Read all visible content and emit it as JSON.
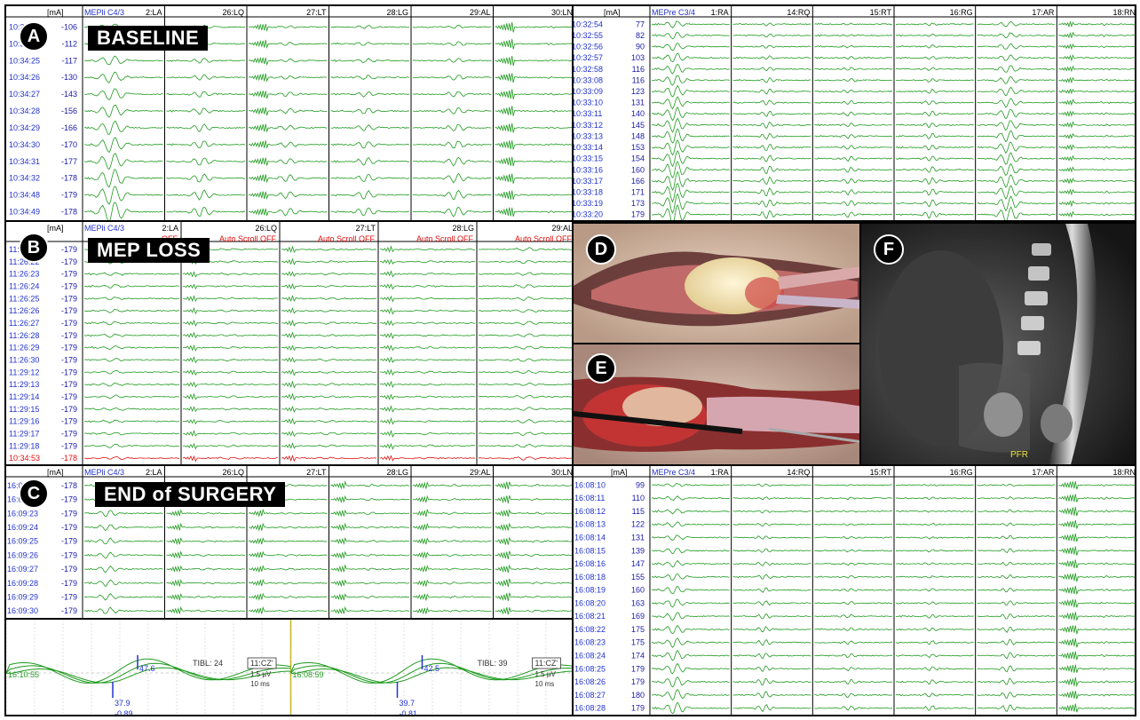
{
  "panels": {
    "A": {
      "letter": "A",
      "title": "BASELINE"
    },
    "B": {
      "letter": "B",
      "title": "MEP LOSS"
    },
    "C": {
      "letter": "C",
      "title": "END of SURGERY"
    },
    "D": {
      "letter": "D"
    },
    "E": {
      "letter": "E"
    },
    "F": {
      "letter": "F",
      "mri_label": "PFR"
    }
  },
  "unit": "[mA]",
  "A_left": {
    "channels": [
      "MEPli C4/3",
      "2:LA",
      "26:LQ",
      "27:LT",
      "28:LG",
      "29:AL",
      "30:LN"
    ],
    "rows": [
      [
        "10:34:23",
        "-106"
      ],
      [
        "10:34:24",
        "-112"
      ],
      [
        "10:34:25",
        "-117"
      ],
      [
        "10:34:26",
        "-130"
      ],
      [
        "10:34:27",
        "-143"
      ],
      [
        "10:34:28",
        "-156"
      ],
      [
        "10:34:29",
        "-166"
      ],
      [
        "10:34:30",
        "-170"
      ],
      [
        "10:34:31",
        "-177"
      ],
      [
        "10:34:32",
        "-178"
      ],
      [
        "10:34:48",
        "-179"
      ],
      [
        "10:34:49",
        "-178"
      ]
    ]
  },
  "A_right": {
    "channels": [
      "MEPre C3/4",
      "1:RA",
      "14:RQ",
      "15:RT",
      "16:RG",
      "17:AR",
      "18:RN"
    ],
    "rows": [
      [
        "10:32:54",
        "77"
      ],
      [
        "10:32:55",
        "82"
      ],
      [
        "10:32:56",
        "90"
      ],
      [
        "10:32:57",
        "103"
      ],
      [
        "10:32:58",
        "116"
      ],
      [
        "10:33:08",
        "116"
      ],
      [
        "10:33:09",
        "123"
      ],
      [
        "10:33:10",
        "131"
      ],
      [
        "10:33:11",
        "140"
      ],
      [
        "10:33:12",
        "145"
      ],
      [
        "10:33:13",
        "148"
      ],
      [
        "10:33:14",
        "153"
      ],
      [
        "10:33:15",
        "154"
      ],
      [
        "10:33:16",
        "160"
      ],
      [
        "10:33:17",
        "166"
      ],
      [
        "10:33:18",
        "171"
      ],
      [
        "10:33:19",
        "173"
      ],
      [
        "10:33:20",
        "179"
      ]
    ]
  },
  "B": {
    "channels": [
      "MEPli C4/3",
      "2:LA",
      "26:LQ",
      "27:LT",
      "28:LG",
      "29:AL"
    ],
    "auto_scroll": [
      "OFF",
      "Auto Scroll OFF",
      "Auto Scroll OFF",
      "Auto Scroll OFF",
      "Auto Scroll OFF"
    ],
    "rows": [
      [
        "11:26:21",
        "-179"
      ],
      [
        "11:26:22",
        "-179"
      ],
      [
        "11:26:23",
        "-179"
      ],
      [
        "11:26:24",
        "-179"
      ],
      [
        "11:26:25",
        "-179"
      ],
      [
        "11:26:26",
        "-179"
      ],
      [
        "11:26:27",
        "-179"
      ],
      [
        "11:26:28",
        "-179"
      ],
      [
        "11:26:29",
        "-179"
      ],
      [
        "11:26:30",
        "-179"
      ],
      [
        "11:29:12",
        "-179"
      ],
      [
        "11:29:13",
        "-179"
      ],
      [
        "11:29:14",
        "-179"
      ],
      [
        "11:29:15",
        "-179"
      ],
      [
        "11:29:16",
        "-179"
      ],
      [
        "11:29:17",
        "-179"
      ],
      [
        "11:29:18",
        "-179"
      ]
    ],
    "red_row": [
      "10:34:53",
      "-178"
    ]
  },
  "C_left": {
    "channels": [
      "MEPli C4/3",
      "2:LA",
      "26:LQ",
      "27:LT",
      "28:LG",
      "29:AL",
      "30:LN"
    ],
    "rows": [
      [
        "16:09:22",
        "-178"
      ],
      [
        "16:09:22",
        "-179"
      ],
      [
        "16:09:23",
        "-179"
      ],
      [
        "16:09:24",
        "-179"
      ],
      [
        "16:09:25",
        "-179"
      ],
      [
        "16:09:26",
        "-179"
      ],
      [
        "16:09:27",
        "-179"
      ],
      [
        "16:09:28",
        "-179"
      ],
      [
        "16:09:29",
        "-179"
      ],
      [
        "16:09:30",
        "-179"
      ]
    ]
  },
  "C_ssep": {
    "left": {
      "time": "16:10:55",
      "p1": "37.9",
      "p1v": "-0.89",
      "p2": "47.6",
      "tibl": "TIBL: 24",
      "box": "11:CZ'",
      "scale": "1.5 µV",
      "ms": "10 ms"
    },
    "right": {
      "time": "16:08:59",
      "p1": "39.7",
      "p1v": "-0.81",
      "p2": "42.5",
      "tibl": "TIBL: 39",
      "box": "11:CZ'",
      "scale": "1.5 µV",
      "ms": "10 ms"
    }
  },
  "C_right": {
    "channels": [
      "MEPre C3/4",
      "1:RA",
      "14:RQ",
      "15:RT",
      "16:RG",
      "17:AR",
      "18:RN"
    ],
    "rows": [
      [
        "16:08:10",
        "99"
      ],
      [
        "16:08:11",
        "110"
      ],
      [
        "16:08:12",
        "115"
      ],
      [
        "16:08:13",
        "122"
      ],
      [
        "16:08:14",
        "131"
      ],
      [
        "16:08:15",
        "139"
      ],
      [
        "16:08:16",
        "147"
      ],
      [
        "16:08:18",
        "155"
      ],
      [
        "16:08:19",
        "160"
      ],
      [
        "16:08:20",
        "163"
      ],
      [
        "16:08:21",
        "169"
      ],
      [
        "16:08:22",
        "175"
      ],
      [
        "16:08:23",
        "175"
      ],
      [
        "16:08:24",
        "174"
      ],
      [
        "16:08:25",
        "179"
      ],
      [
        "16:08:26",
        "179"
      ],
      [
        "16:08:27",
        "180"
      ],
      [
        "16:08:28",
        "179"
      ]
    ]
  },
  "colors": {
    "trace": "#1f9a1f",
    "time": "#2233cc",
    "red": "#e01010",
    "grid": "#9a9a9a"
  }
}
